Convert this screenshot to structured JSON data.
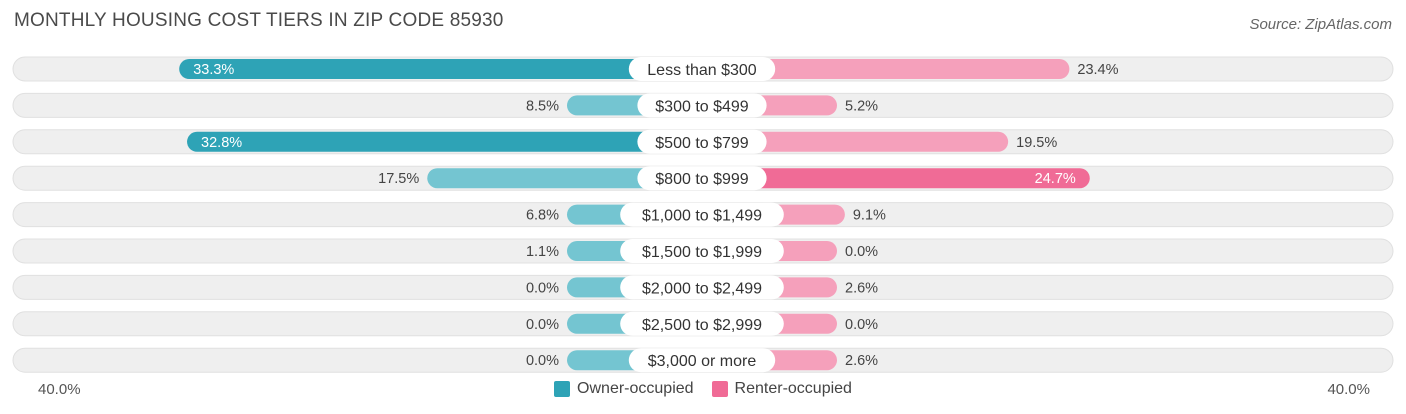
{
  "title": "MONTHLY HOUSING COST TIERS IN ZIP CODE 85930",
  "source": "Source: ZipAtlas.com",
  "colors": {
    "owner": "#2ea3b6",
    "owner_light": "#74c5d1",
    "renter": "#f06b96",
    "renter_light": "#f5a0bb",
    "track": "#efefef"
  },
  "axis": {
    "left_label": "40.0%",
    "right_label": "40.0%"
  },
  "legend": {
    "owner_label": "Owner-occupied",
    "renter_label": "Renter-occupied"
  },
  "chart_data": {
    "type": "bar",
    "orientation": "horizontal-diverging",
    "categories": [
      "Less than $300",
      "$300 to $499",
      "$500 to $799",
      "$800 to $999",
      "$1,000 to $1,499",
      "$1,500 to $1,999",
      "$2,000 to $2,499",
      "$2,500 to $2,999",
      "$3,000 or more"
    ],
    "series": [
      {
        "name": "Owner-occupied",
        "values": [
          33.3,
          8.5,
          32.8,
          17.5,
          6.8,
          1.1,
          0.0,
          0.0,
          0.0
        ],
        "labels": [
          "33.3%",
          "8.5%",
          "32.8%",
          "17.5%",
          "6.8%",
          "1.1%",
          "0.0%",
          "0.0%",
          "0.0%"
        ]
      },
      {
        "name": "Renter-occupied",
        "values": [
          23.4,
          5.2,
          19.5,
          24.7,
          9.1,
          0.0,
          2.6,
          0.0,
          2.6
        ],
        "labels": [
          "23.4%",
          "5.2%",
          "19.5%",
          "24.7%",
          "9.1%",
          "0.0%",
          "2.6%",
          "0.0%",
          "2.6%"
        ]
      }
    ],
    "xlim": [
      -40,
      40
    ],
    "grid": false,
    "legend_position": "bottom-center"
  }
}
